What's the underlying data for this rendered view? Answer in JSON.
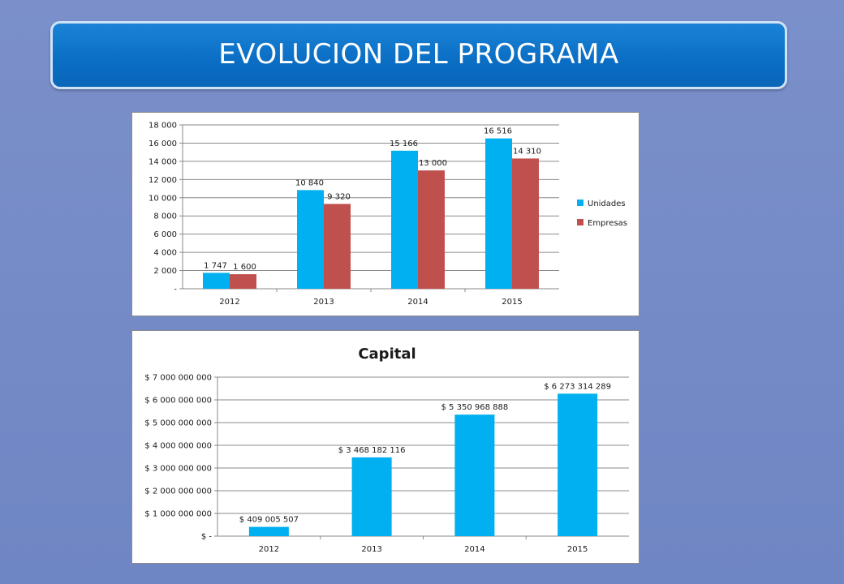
{
  "title": "EVOLUCION DEL PROGRAMA",
  "chart_data": [
    {
      "type": "bar",
      "title": "",
      "categories": [
        "2012",
        "2013",
        "2014",
        "2015"
      ],
      "series": [
        {
          "name": "Unidades",
          "values": [
            1747,
            10840,
            15166,
            16516
          ],
          "labels": [
            "1 747",
            "10 840",
            "15 166",
            "16 516"
          ],
          "color": "#00b0f0"
        },
        {
          "name": "Empresas",
          "values": [
            1600,
            9320,
            13000,
            14310
          ],
          "labels": [
            "1 600",
            "9 320",
            "13 000",
            "14 310"
          ],
          "color": "#c0504d"
        }
      ],
      "ylim": [
        0,
        18000
      ],
      "yticks": [
        0,
        2000,
        4000,
        6000,
        8000,
        10000,
        12000,
        14000,
        16000,
        18000
      ],
      "ytick_labels": [
        "-",
        "2 000",
        "4 000",
        "6 000",
        "8 000",
        "10 000",
        "12 000",
        "14 000",
        "16 000",
        "18 000"
      ],
      "grid": true,
      "legend": "right"
    },
    {
      "type": "bar",
      "title": "Capital",
      "categories": [
        "2012",
        "2013",
        "2014",
        "2015"
      ],
      "series": [
        {
          "name": "",
          "values": [
            409005507,
            3468182116,
            5350968888,
            6273314289
          ],
          "labels": [
            "$ 409 005 507",
            "$ 3 468 182 116",
            "$ 5 350 968 888",
            "$ 6 273 314 289"
          ],
          "color": "#00b0f0"
        }
      ],
      "ylim": [
        0,
        7000000000
      ],
      "yticks": [
        0,
        1000000000,
        2000000000,
        3000000000,
        4000000000,
        5000000000,
        6000000000,
        7000000000
      ],
      "ytick_labels": [
        "$ -",
        "$ 1 000 000 000",
        "$ 2 000 000 000",
        "$ 3 000 000 000",
        "$ 4 000 000 000",
        "$ 5 000 000 000",
        "$ 6 000 000 000",
        "$ 7 000 000 000"
      ],
      "grid": true,
      "legend": "none"
    }
  ]
}
